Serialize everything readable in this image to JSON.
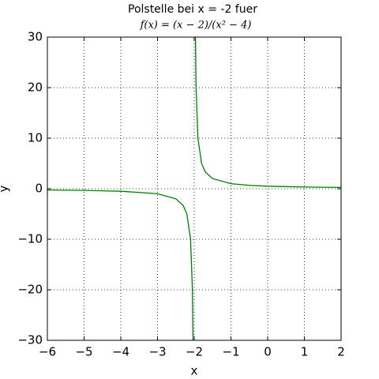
{
  "chart_data": {
    "type": "line",
    "title": "Polstelle bei x = -2 fuer",
    "subtitle": "f(x) = (x − 2)/(x² − 4)",
    "xlabel": "x",
    "ylabel": "y",
    "x": [
      -6,
      -5,
      -4,
      -3,
      -2.5,
      -2.3,
      -2.2,
      -2.1,
      -2.05,
      -2.033,
      -2,
      -1.967,
      -1.95,
      -1.9,
      -1.8,
      -1.7,
      -1.5,
      -1,
      -0.5,
      0,
      1,
      2
    ],
    "values": [
      -0.25,
      -0.333,
      -0.5,
      -1,
      -2,
      -3.33,
      -5,
      -10,
      -20,
      -30,
      null,
      30,
      20,
      10,
      5,
      3.33,
      2,
      1,
      0.667,
      0.5,
      0.333,
      0.25
    ],
    "color": "#008000",
    "xlim": [
      -6,
      2
    ],
    "xticks": [
      {
        "value": -6,
        "label": "−6"
      },
      {
        "value": -5,
        "label": "−5"
      },
      {
        "value": -4,
        "label": "−4"
      },
      {
        "value": -3,
        "label": "−3"
      },
      {
        "value": -2,
        "label": "−2"
      },
      {
        "value": -1,
        "label": "−1"
      },
      0,
      1,
      2
    ],
    "ylim": [
      -30,
      30
    ],
    "yticks": [
      {
        "value": -30,
        "label": "−30"
      },
      {
        "value": -20,
        "label": "−20"
      },
      {
        "value": -10,
        "label": "−10"
      },
      0,
      10,
      20,
      30
    ],
    "grid": true
  }
}
